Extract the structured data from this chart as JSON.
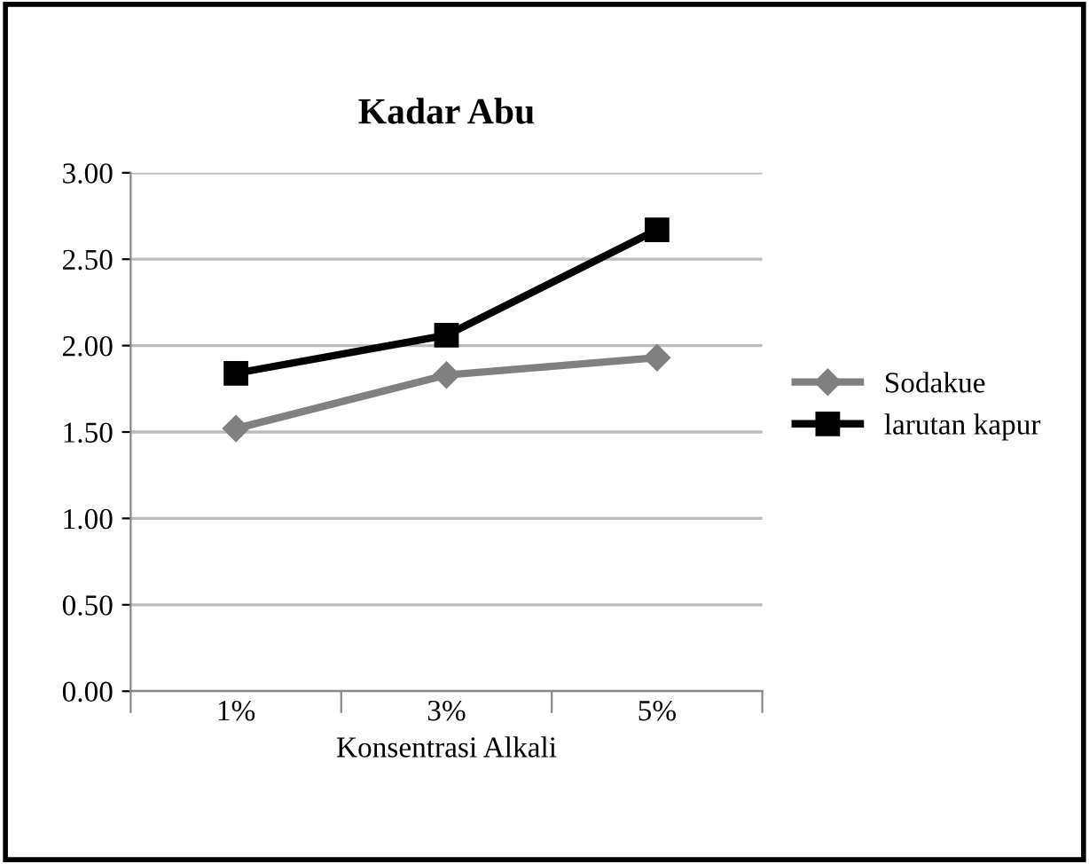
{
  "chart_data": {
    "type": "line",
    "title": "Kadar Abu",
    "xlabel": "Konsentrasi Alkali",
    "categories": [
      "1%",
      "3%",
      "5%"
    ],
    "series": [
      {
        "name": "Sodakue",
        "color": "#808080",
        "marker": "diamond",
        "values": [
          1.52,
          1.83,
          1.93
        ]
      },
      {
        "name": "larutan kapur",
        "color": "#000000",
        "marker": "square",
        "values": [
          1.84,
          2.06,
          2.67
        ]
      }
    ],
    "ylim": [
      0,
      3
    ],
    "yticks": [
      {
        "value": 0,
        "label": "0.00"
      },
      {
        "value": 0.5,
        "label": "0.50"
      },
      {
        "value": 1,
        "label": "1.00"
      },
      {
        "value": 1.5,
        "label": "1.50"
      },
      {
        "value": 2,
        "label": "2.00"
      },
      {
        "value": 2.5,
        "label": "2.50"
      },
      {
        "value": 3,
        "label": "3.00"
      }
    ],
    "grid": "y",
    "legend": "right",
    "line_style": "solid"
  }
}
